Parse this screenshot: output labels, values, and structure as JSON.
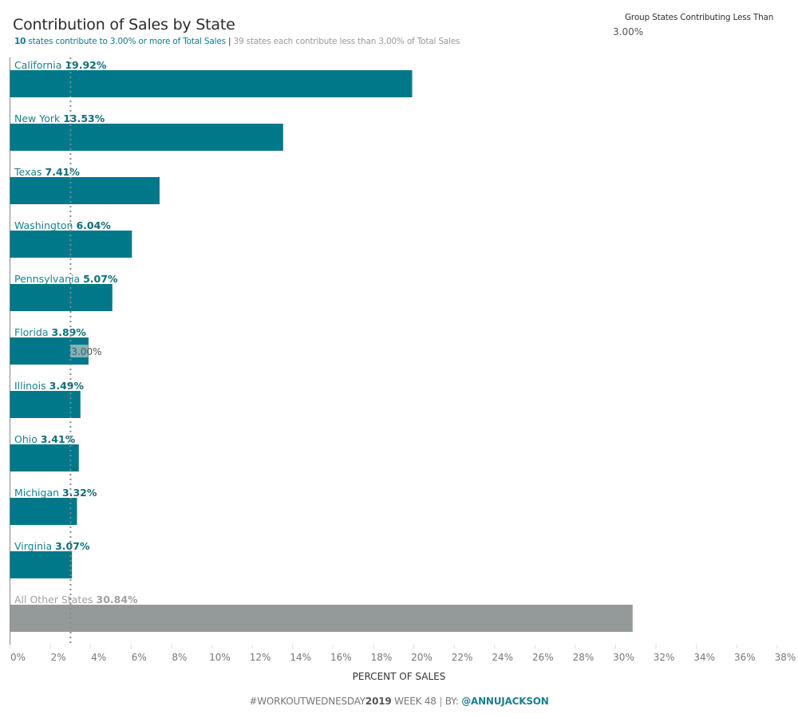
{
  "header": {
    "title": "Contribution of Sales by State",
    "subtitle_highlight_count": "10",
    "subtitle_highlight_rest": " states contribute to 3.00% or more of Total Sales",
    "subtitle_separator": "|",
    "subtitle_rest": " 39 states each contribute less than 3.00% of Total Sales"
  },
  "parameter": {
    "label": "Group States Contributing Less Than",
    "value": "3.00%"
  },
  "footer": {
    "prefix": "#WORKOUTWEDNESDAY",
    "year": "2019",
    "week": " WEEK 48 ",
    "separator": "|",
    "by": " BY: ",
    "handle": "@ANNUJACKSON"
  },
  "colors": {
    "bar": "#00788a",
    "other_bar": "#949a9a",
    "label_name": "#1a7f8e",
    "label_value": "#0e6e7e",
    "other_label": "#a0a0a0",
    "reference_line": "#888888",
    "reference_label_bg": "#7fb3bb"
  },
  "chart_data": {
    "type": "bar",
    "orientation": "horizontal",
    "title": "Contribution of Sales by State",
    "xlabel": "PERCENT OF SALES",
    "ylabel": "",
    "xlim": [
      0,
      38
    ],
    "grid": false,
    "categories": [
      "California",
      "New York",
      "Texas",
      "Washington",
      "Pennsylvania",
      "Florida",
      "Illinois",
      "Ohio",
      "Michigan",
      "Virginia",
      "All Other States"
    ],
    "values": [
      19.92,
      13.53,
      7.41,
      6.04,
      5.07,
      3.89,
      3.49,
      3.41,
      3.32,
      3.07,
      30.84
    ],
    "value_labels": [
      "19.92%",
      "13.53%",
      "7.41%",
      "6.04%",
      "5.07%",
      "3.89%",
      "3.49%",
      "3.41%",
      "3.32%",
      "3.07%",
      "30.84%"
    ],
    "groups": [
      "state",
      "state",
      "state",
      "state",
      "state",
      "state",
      "state",
      "state",
      "state",
      "state",
      "other"
    ],
    "x_ticks": [
      0,
      2,
      4,
      6,
      8,
      10,
      12,
      14,
      16,
      18,
      20,
      22,
      24,
      26,
      28,
      30,
      32,
      34,
      36,
      38
    ],
    "x_tick_labels": [
      "0%",
      "2%",
      "4%",
      "6%",
      "8%",
      "10%",
      "12%",
      "14%",
      "16%",
      "18%",
      "20%",
      "22%",
      "24%",
      "26%",
      "28%",
      "30%",
      "32%",
      "34%",
      "36%",
      "38%"
    ],
    "reference_line": {
      "value": 3.0,
      "label": "3.00%",
      "style": "dotted"
    }
  }
}
